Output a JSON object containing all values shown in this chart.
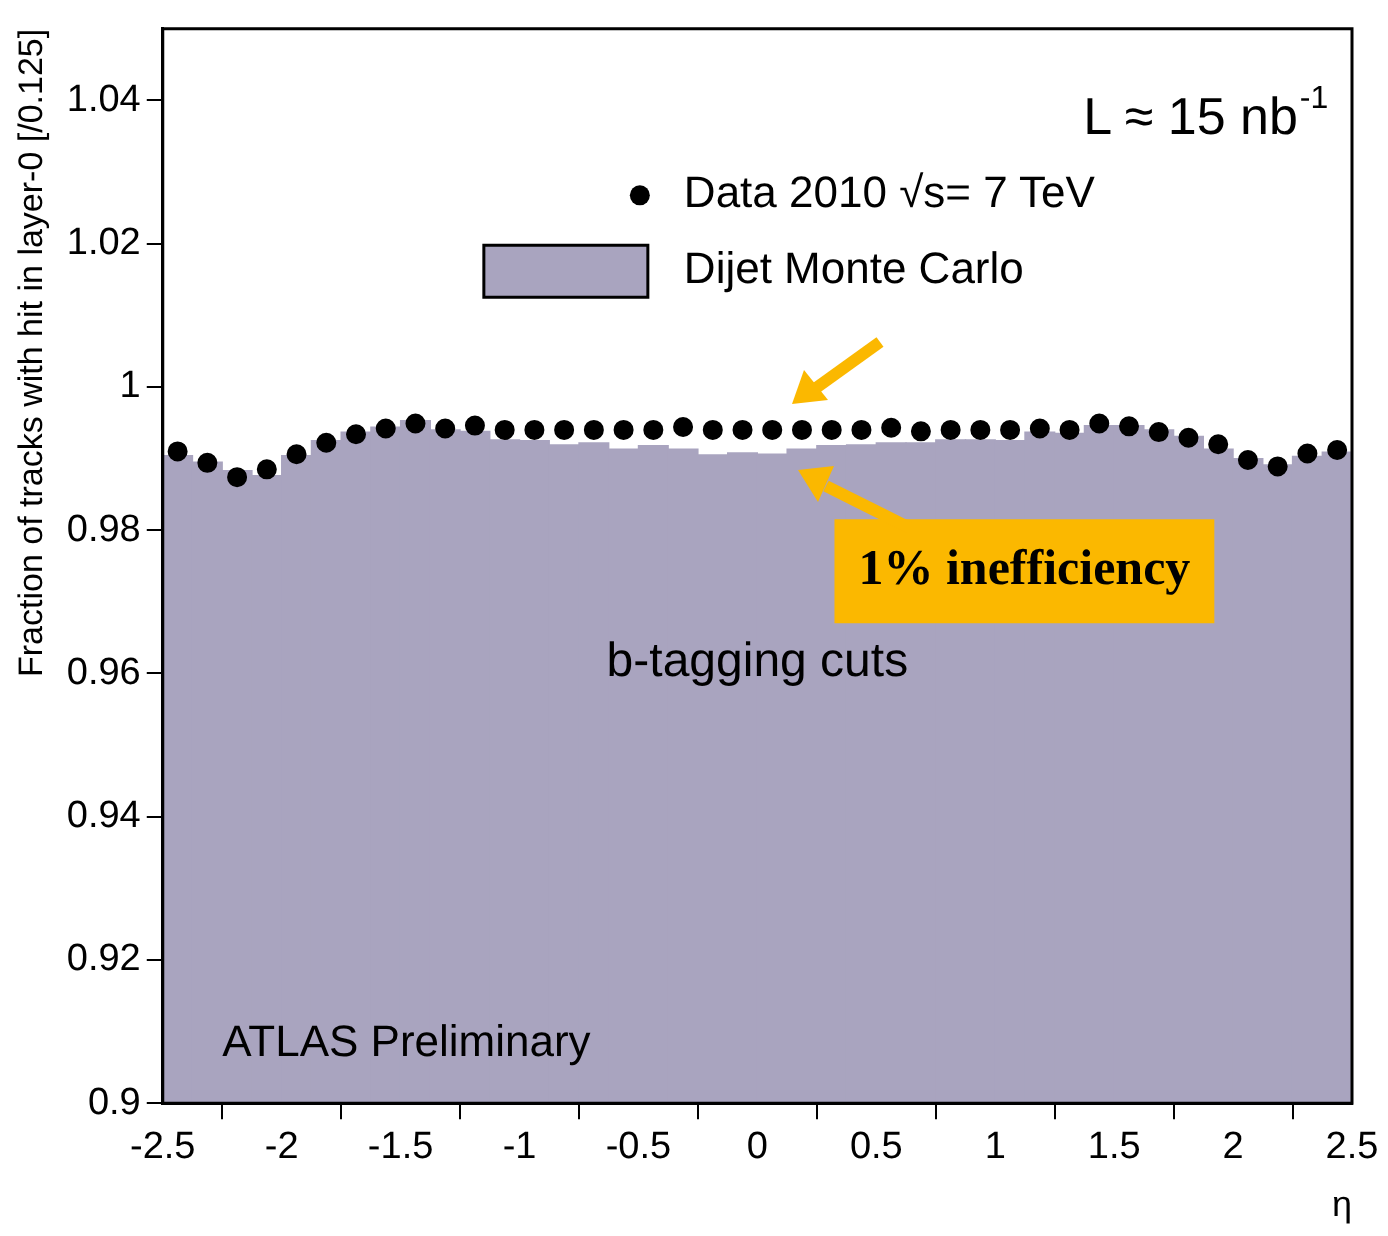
{
  "chart_data": {
    "type": "histogram",
    "xlabel": "η",
    "ylabel": "Fraction of tracks with hit in layer-0 [/0.125]",
    "xlim": [
      -2.5,
      2.5
    ],
    "xticks": [
      -2.5,
      -2,
      -1.5,
      -1,
      -0.5,
      0,
      0.5,
      1,
      1.5,
      2,
      2.5
    ],
    "ylim": [
      0.9,
      1.05
    ],
    "yticks": [
      0.9,
      0.92,
      0.94,
      0.96,
      0.98,
      1,
      1.02,
      1.04
    ],
    "grid": false,
    "legend": "top",
    "marker": "circle",
    "bins": [
      -2.5,
      -2.375,
      -2.25,
      -2.125,
      -2,
      -1.875,
      -1.75,
      -1.625,
      -1.5,
      -1.375,
      -1.25,
      -1.125,
      -1,
      -0.875,
      -0.75,
      -0.625,
      -0.5,
      -0.375,
      -0.25,
      -0.125,
      0,
      0.125,
      0.25,
      0.375,
      0.5,
      0.625,
      0.75,
      0.875,
      1,
      1.125,
      1.25,
      1.375,
      1.5,
      1.625,
      1.75,
      1.875,
      2,
      2.125,
      2.25,
      2.375,
      2.5
    ],
    "series": [
      {
        "name": "Dijet Monte Carlo",
        "color": "#a9a4bf",
        "values": [
          0.9904,
          0.9895,
          0.9883,
          0.9876,
          0.9904,
          0.9925,
          0.9937,
          0.9944,
          0.9953,
          0.994,
          0.9938,
          0.9926,
          0.9925,
          0.9919,
          0.9922,
          0.9913,
          0.9918,
          0.9913,
          0.9905,
          0.9908,
          0.9906,
          0.9913,
          0.9918,
          0.9919,
          0.9922,
          0.9922,
          0.9926,
          0.9926,
          0.9925,
          0.9937,
          0.9935,
          0.9946,
          0.9946,
          0.994,
          0.9931,
          0.9913,
          0.99,
          0.9891,
          0.9903,
          0.9909
        ]
      },
      {
        "name": "Data 2010 √s= 7 TeV",
        "type": "scatter",
        "color": "#000000",
        "x": [
          -2.4375,
          -2.3125,
          -2.1875,
          -2.0625,
          -1.9375,
          -1.8125,
          -1.6875,
          -1.5625,
          -1.4375,
          -1.3125,
          -1.1875,
          -1.0625,
          -0.9375,
          -0.8125,
          -0.6875,
          -0.5625,
          -0.4375,
          -0.3125,
          -0.1875,
          -0.0625,
          0.0625,
          0.1875,
          0.3125,
          0.4375,
          0.5625,
          0.6875,
          0.8125,
          0.9375,
          1.0625,
          1.1875,
          1.3125,
          1.4375,
          1.5625,
          1.6875,
          1.8125,
          1.9375,
          2.0625,
          2.1875,
          2.3125,
          2.4375
        ],
        "values": [
          0.991,
          0.9894,
          0.9874,
          0.9885,
          0.9906,
          0.9922,
          0.9934,
          0.9942,
          0.9949,
          0.9942,
          0.9946,
          0.994,
          0.994,
          0.994,
          0.994,
          0.994,
          0.994,
          0.9944,
          0.994,
          0.994,
          0.994,
          0.994,
          0.994,
          0.994,
          0.9943,
          0.9938,
          0.994,
          0.994,
          0.994,
          0.9942,
          0.994,
          0.9949,
          0.9945,
          0.9937,
          0.9929,
          0.992,
          0.9898,
          0.9889,
          0.9907,
          0.9912
        ]
      }
    ],
    "annotations": [
      "L ≈ 15 nb$^{-1}$",
      "b-tagging cuts",
      "ATLAS Preliminary",
      "1% inefficiency"
    ]
  }
}
